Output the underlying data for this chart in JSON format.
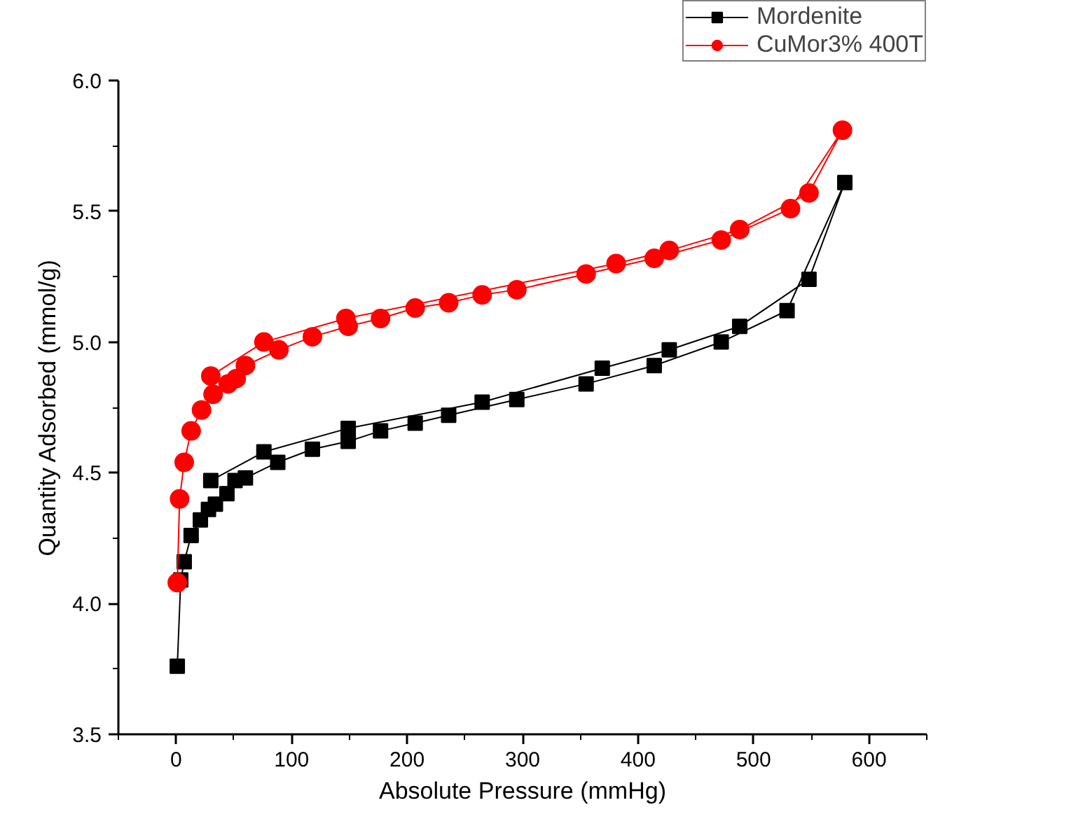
{
  "chart_data": {
    "type": "line",
    "xlabel": "Absolute Pressure (mmHg)",
    "ylabel": "Quantity Adsorbed (mmol/g)",
    "xlim": [
      -50,
      650
    ],
    "xticks": [
      0,
      100,
      200,
      300,
      400,
      500,
      600
    ],
    "ylim": [
      3.5,
      6.0
    ],
    "yticks": [
      {
        "value": 3.5,
        "label": "3.5"
      },
      {
        "value": 4.0,
        "label": "4.0"
      },
      {
        "value": 4.5,
        "label": "4.5"
      },
      {
        "value": 5.0,
        "label": "5.0"
      },
      {
        "value": 5.5,
        "label": "5.5"
      },
      {
        "value": 6.0,
        "label": "6.0"
      }
    ],
    "grid": false,
    "legend": "top right",
    "line_style": "solid",
    "series": [
      {
        "name": "Mordenite",
        "color": "#000000",
        "marker": "square",
        "x": [
          1,
          4,
          7,
          13,
          21,
          28,
          34,
          44,
          51,
          60,
          88,
          118,
          149,
          177,
          207,
          236,
          295,
          355,
          414,
          472,
          529,
          579,
          548,
          488,
          427,
          369,
          265,
          149,
          76,
          30
        ],
        "values": [
          3.76,
          4.09,
          4.16,
          4.26,
          4.32,
          4.36,
          4.38,
          4.42,
          4.47,
          4.48,
          4.54,
          4.59,
          4.62,
          4.66,
          4.69,
          4.72,
          4.78,
          4.84,
          4.91,
          5.0,
          5.12,
          5.61,
          5.24,
          5.06,
          4.97,
          4.9,
          4.77,
          4.67,
          4.58,
          4.47
        ]
      },
      {
        "name": "CuMor3% 400T",
        "color": "#ff0000",
        "marker": "circle",
        "x": [
          1,
          3,
          7,
          13,
          22,
          32,
          45,
          52,
          60,
          89,
          118,
          149,
          177,
          207,
          236,
          265,
          295,
          355,
          414,
          472,
          532,
          577,
          548,
          488,
          427,
          381,
          147,
          76,
          30
        ],
        "values": [
          4.08,
          4.4,
          4.54,
          4.66,
          4.74,
          4.8,
          4.84,
          4.86,
          4.91,
          4.97,
          5.02,
          5.06,
          5.09,
          5.13,
          5.15,
          5.18,
          5.2,
          5.26,
          5.32,
          5.39,
          5.51,
          5.81,
          5.57,
          5.43,
          5.35,
          5.3,
          5.09,
          5.0,
          4.87
        ]
      }
    ]
  }
}
